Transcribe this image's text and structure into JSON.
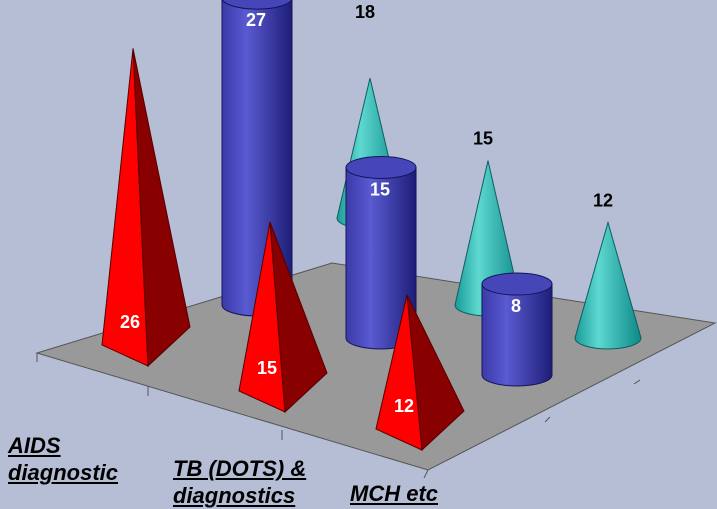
{
  "chart_data": {
    "type": "bar",
    "style": "3d-shapes",
    "categories": [
      "AIDS diagnostic",
      "TB (DOTS) & diagnostics",
      "MCH etc"
    ],
    "category_label_lines": [
      [
        "AIDS",
        "diagnostic"
      ],
      [
        "TB (DOTS) &",
        "diagnostics"
      ],
      [
        "MCH etc"
      ]
    ],
    "series": [
      {
        "shape": "pyramid",
        "color": "#ff0000",
        "values": [
          26,
          15,
          12
        ]
      },
      {
        "shape": "cylinder",
        "color": "#3333aa",
        "values": [
          27,
          15,
          8
        ]
      },
      {
        "shape": "cone",
        "color": "#33b3b3",
        "values": [
          18,
          15,
          12
        ]
      }
    ],
    "colors": {
      "background": "#b6bed6",
      "floor": "#999999",
      "pyramid_light": "#ff0000",
      "pyramid_dark": "#880000",
      "cylinder_light": "#5a5ad2",
      "cylinder_dark": "#1e1e78",
      "cone_light": "#5ed8d0",
      "cone_dark": "#0e8888"
    },
    "grid": false,
    "legend": "none"
  }
}
